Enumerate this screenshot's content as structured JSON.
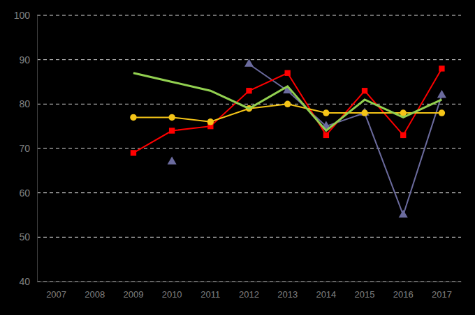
{
  "chart_data": {
    "type": "line",
    "categories": [
      "2007",
      "2008",
      "2009",
      "2010",
      "2011",
      "2012",
      "2013",
      "2014",
      "2015",
      "2016",
      "2017"
    ],
    "ylim": [
      40,
      100
    ],
    "yticks": [
      40,
      50,
      60,
      70,
      80,
      90,
      100
    ],
    "grid": true,
    "series": [
      {
        "color": "#6b6b9e",
        "marker": "triangle",
        "line_style": "solid",
        "values": [
          null,
          null,
          null,
          67,
          null,
          89,
          83,
          75,
          78,
          55,
          82
        ]
      },
      {
        "color": "#ff0000",
        "marker": "square",
        "line_style": "solid",
        "values": [
          null,
          null,
          69,
          74,
          75,
          83,
          87,
          73,
          83,
          73,
          88
        ]
      },
      {
        "color": "#f5c518",
        "marker": "circle",
        "line_style": "solid",
        "values": [
          null,
          null,
          77,
          77,
          76,
          79,
          80,
          78,
          78,
          78,
          78
        ]
      },
      {
        "color": "#92d050",
        "marker": "none",
        "line_style": "solid",
        "values": [
          null,
          null,
          87,
          85,
          83,
          79,
          84,
          74,
          81,
          77,
          81
        ]
      }
    ]
  }
}
